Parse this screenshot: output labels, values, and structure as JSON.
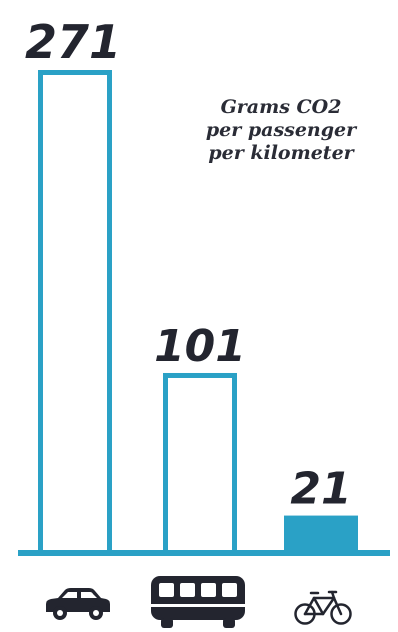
{
  "chart_data": {
    "type": "bar",
    "categories": [
      "car",
      "bus",
      "bicycle"
    ],
    "values": [
      271,
      101,
      21
    ],
    "value_labels": [
      "271",
      "101",
      "21"
    ],
    "annotation": [
      "Grams CO2",
      "per passenger",
      "per kilometer"
    ],
    "ylim": [
      0,
      271
    ],
    "grid": false,
    "x_tick_icons": [
      "car-icon",
      "bus-icon",
      "bicycle-icon"
    ],
    "bar_styles": [
      "outline",
      "outline",
      "filled"
    ]
  },
  "colors": {
    "bar": "#2aa1c6",
    "baseline": "#2aa1c6",
    "text": "#23252f",
    "icon": "#23252f"
  }
}
